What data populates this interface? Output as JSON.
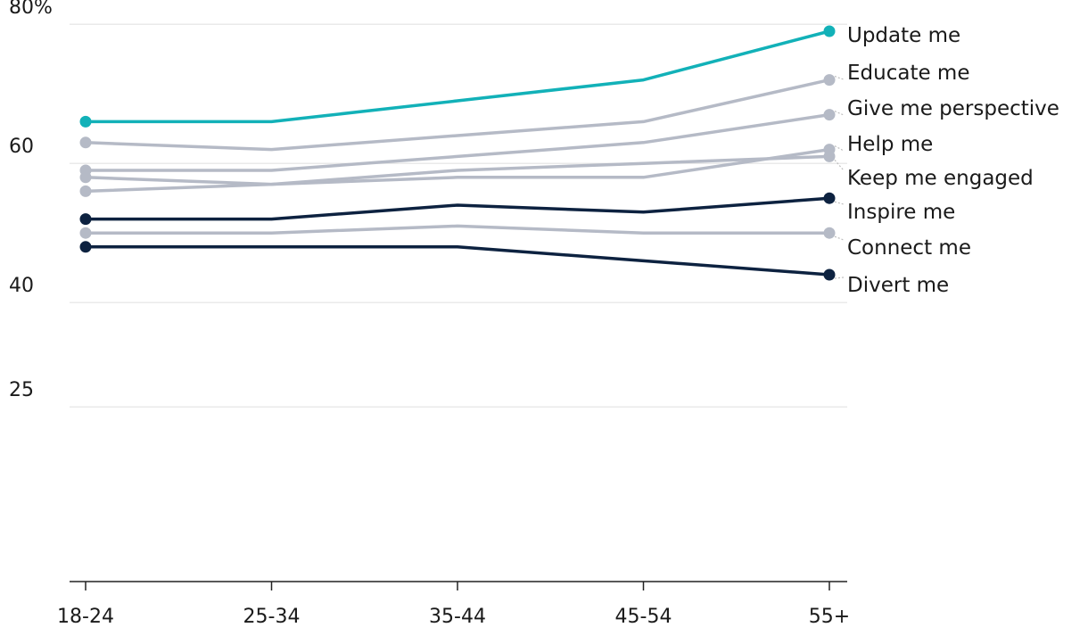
{
  "chart_data": {
    "type": "line",
    "categories": [
      "18-24",
      "25-34",
      "35-44",
      "45-54",
      "55+"
    ],
    "y_ticks": [
      {
        "value": 80,
        "label": "80%"
      },
      {
        "value": 60,
        "label": "60"
      },
      {
        "value": 40,
        "label": "40"
      },
      {
        "value": 25,
        "label": "25"
      }
    ],
    "ylim": [
      0,
      80
    ],
    "grid": true,
    "legend": "direct labels at right end of lines",
    "series": [
      {
        "name": "Update me",
        "color": "#12b1b8",
        "values": [
          66,
          66,
          69,
          72,
          79
        ]
      },
      {
        "name": "Educate me",
        "color": "#b5bac6",
        "values": [
          63,
          62,
          64,
          66,
          72
        ]
      },
      {
        "name": "Give me perspective",
        "color": "#b5bac6",
        "values": [
          59,
          59,
          61,
          63,
          67
        ]
      },
      {
        "name": "Help me",
        "color": "#b5bac6",
        "values": [
          58,
          57,
          58,
          58,
          62
        ]
      },
      {
        "name": "Keep me engaged",
        "color": "#b5bac6",
        "values": [
          56,
          57,
          59,
          60,
          61
        ]
      },
      {
        "name": "Inspire me",
        "color": "#0d2240",
        "values": [
          52,
          52,
          54,
          53,
          55
        ]
      },
      {
        "name": "Connect me",
        "color": "#b5bac6",
        "values": [
          50,
          50,
          51,
          50,
          50
        ]
      },
      {
        "name": "Divert me",
        "color": "#0d2240",
        "values": [
          48,
          48,
          48,
          46,
          44
        ]
      }
    ]
  }
}
